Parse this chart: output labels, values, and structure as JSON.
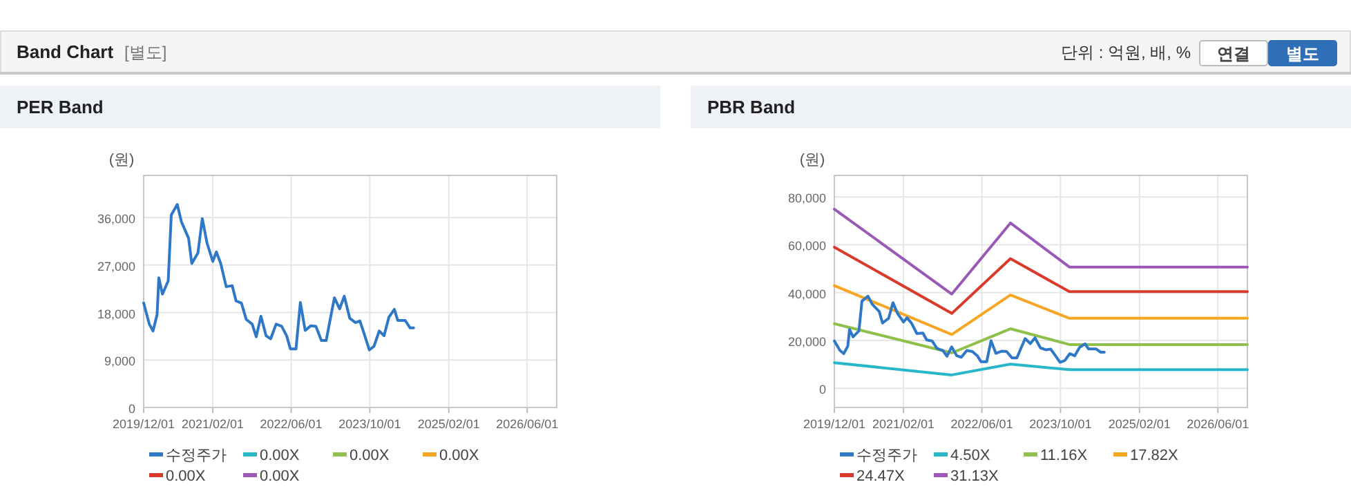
{
  "chart_data": [
    {
      "type": "other",
      "title": "Band Chart",
      "subtitle": "[별도]",
      "annotations": [
        "단위 : 억원, 배, %",
        "연결",
        "별도"
      ]
    },
    {
      "type": "line",
      "title": "PER Band",
      "ylabel": "(원)",
      "grid": true,
      "legend": "bottom",
      "line_style": "solid",
      "marker": "none",
      "xlim": [
        "2019-12-01",
        "2026-12-01"
      ],
      "xticks": [
        {
          "value": "2019-12-01",
          "label": "2019/12/01"
        },
        {
          "value": "2021-02-01",
          "label": "2021/02/01"
        },
        {
          "value": "2022-06-01",
          "label": "2022/06/01"
        },
        {
          "value": "2023-10-01",
          "label": "2023/10/01"
        },
        {
          "value": "2025-02-01",
          "label": "2025/02/01"
        },
        {
          "value": "2026-06-01",
          "label": "2026/06/01"
        }
      ],
      "ylim": [
        0,
        44000
      ],
      "yticks": [
        0,
        {
          "value": 9000,
          "label": "9,000"
        },
        {
          "value": 18000,
          "label": "18,000"
        },
        {
          "value": 27000,
          "label": "27,000"
        },
        {
          "value": 36000,
          "label": "36,000"
        }
      ],
      "series": [
        {
          "name": "수정주가",
          "color": "#2f78c8",
          "x": [
            "2019-12-01",
            "2020-01-05",
            "2020-01-28",
            "2020-02-22",
            "2020-03-04",
            "2020-03-26",
            "2020-05-01",
            "2020-05-20",
            "2020-06-26",
            "2020-07-22",
            "2020-09-04",
            "2020-09-24",
            "2020-11-01",
            "2020-11-28",
            "2020-12-27",
            "2021-02-01",
            "2021-02-23",
            "2021-03-22",
            "2021-04-25",
            "2021-06-01",
            "2021-06-25",
            "2021-07-28",
            "2021-08-27",
            "2021-10-03",
            "2021-10-28",
            "2021-11-26",
            "2021-12-28",
            "2022-01-25",
            "2022-02-28",
            "2022-04-03",
            "2022-05-04",
            "2022-05-27",
            "2022-07-01",
            "2022-07-28",
            "2022-08-27",
            "2022-10-01",
            "2022-11-01",
            "2022-12-05",
            "2023-01-04",
            "2023-01-25",
            "2023-02-24",
            "2023-03-28",
            "2023-04-26",
            "2023-05-30",
            "2023-07-04",
            "2023-08-01",
            "2023-08-31",
            "2023-09-28",
            "2023-10-27",
            "2023-11-28",
            "2023-12-28",
            "2024-01-27",
            "2024-03-01",
            "2024-03-22",
            "2024-05-07",
            "2024-06-06",
            "2024-06-28"
          ],
          "values": [
            19800,
            15800,
            14500,
            17600,
            24600,
            21500,
            24000,
            36500,
            38500,
            35200,
            32100,
            27300,
            29300,
            35800,
            31200,
            27700,
            29500,
            27300,
            22900,
            23100,
            20200,
            19800,
            16700,
            15800,
            13400,
            17300,
            13600,
            13000,
            15800,
            15400,
            13600,
            11100,
            11100,
            19900,
            14600,
            15500,
            15400,
            12700,
            12700,
            16100,
            20800,
            18700,
            21100,
            16900,
            16100,
            16400,
            13600,
            10900,
            11600,
            14500,
            13600,
            17100,
            18600,
            16500,
            16500,
            15100,
            15100
          ]
        },
        {
          "name": "0.00X",
          "color": "#27b7c9"
        },
        {
          "name": "0.00X",
          "color": "#8fc04c"
        },
        {
          "name": "0.00X",
          "color": "#f5a623"
        },
        {
          "name": "0.00X",
          "color": "#d93a2b"
        },
        {
          "name": "0.00X",
          "color": "#9b59b6"
        }
      ]
    },
    {
      "type": "line",
      "title": "PBR Band",
      "ylabel": "(원)",
      "grid": true,
      "legend": "bottom",
      "line_style": "solid",
      "marker": "none",
      "xlim": [
        "2019-12-01",
        "2026-12-01"
      ],
      "xticks": [
        {
          "value": "2019-12-01",
          "label": "2019/12/01"
        },
        {
          "value": "2021-02-01",
          "label": "2021/02/01"
        },
        {
          "value": "2022-06-01",
          "label": "2022/06/01"
        },
        {
          "value": "2023-10-01",
          "label": "2023/10/01"
        },
        {
          "value": "2025-02-01",
          "label": "2025/02/01"
        },
        {
          "value": "2026-06-01",
          "label": "2026/06/01"
        }
      ],
      "ylim": [
        -8000,
        89000
      ],
      "yticks": [
        0,
        {
          "value": 20000,
          "label": "20,000"
        },
        {
          "value": 40000,
          "label": "40,000"
        },
        {
          "value": 60000,
          "label": "60,000"
        },
        {
          "value": 80000,
          "label": "80,000"
        }
      ],
      "series": [
        {
          "name": "수정주가",
          "color": "#2f78c8",
          "x": [
            "2019-12-01",
            "2020-01-05",
            "2020-01-28",
            "2020-02-22",
            "2020-03-04",
            "2020-03-26",
            "2020-05-01",
            "2020-05-20",
            "2020-06-26",
            "2020-07-22",
            "2020-09-04",
            "2020-09-24",
            "2020-11-01",
            "2020-11-28",
            "2020-12-27",
            "2021-02-01",
            "2021-02-23",
            "2021-03-22",
            "2021-04-25",
            "2021-06-01",
            "2021-06-25",
            "2021-07-28",
            "2021-08-27",
            "2021-10-03",
            "2021-10-28",
            "2021-11-26",
            "2021-12-28",
            "2022-01-25",
            "2022-02-28",
            "2022-04-03",
            "2022-05-04",
            "2022-05-27",
            "2022-07-01",
            "2022-07-28",
            "2022-08-27",
            "2022-10-01",
            "2022-11-01",
            "2022-12-05",
            "2023-01-04",
            "2023-01-25",
            "2023-02-24",
            "2023-03-28",
            "2023-04-26",
            "2023-05-30",
            "2023-07-04",
            "2023-08-01",
            "2023-08-31",
            "2023-09-28",
            "2023-10-27",
            "2023-11-28",
            "2023-12-28",
            "2024-01-27",
            "2024-03-01",
            "2024-03-22",
            "2024-05-07",
            "2024-06-06",
            "2024-06-28"
          ],
          "values": [
            19800,
            15800,
            14500,
            17600,
            24600,
            21500,
            24000,
            36500,
            38500,
            35200,
            32100,
            27300,
            29300,
            35800,
            31200,
            27700,
            29500,
            27300,
            22900,
            23100,
            20200,
            19800,
            16700,
            15800,
            13400,
            17300,
            13600,
            13000,
            15800,
            15400,
            13600,
            11100,
            11100,
            19900,
            14600,
            15500,
            15400,
            12700,
            12700,
            16100,
            20800,
            18700,
            21100,
            16900,
            16100,
            16400,
            13600,
            10900,
            11600,
            14500,
            13600,
            17100,
            18600,
            16500,
            16500,
            15100,
            15100
          ]
        },
        {
          "name": "4.50X",
          "color": "#27b7c9",
          "x": [
            "2019-12-01",
            "2021-11-27",
            "2022-11-25",
            "2023-11-25",
            "2026-12-01"
          ],
          "values": [
            10700,
            5600,
            10100,
            7800,
            7800
          ]
        },
        {
          "name": "11.16X",
          "color": "#8fc04c",
          "x": [
            "2019-12-01",
            "2021-11-27",
            "2022-11-25",
            "2023-11-25",
            "2026-12-01"
          ],
          "values": [
            27000,
            14800,
            24900,
            18300,
            18300
          ]
        },
        {
          "name": "17.82X",
          "color": "#f5a623",
          "x": [
            "2019-12-01",
            "2021-11-27",
            "2022-11-25",
            "2023-11-25",
            "2026-12-01"
          ],
          "values": [
            42900,
            22500,
            39000,
            29300,
            29300
          ]
        },
        {
          "name": "24.47X",
          "color": "#d93a2b",
          "x": [
            "2019-12-01",
            "2021-11-27",
            "2022-11-25",
            "2023-11-25",
            "2026-12-01"
          ],
          "values": [
            59000,
            31300,
            54200,
            40400,
            40400
          ]
        },
        {
          "name": "31.13X",
          "color": "#9b59b6",
          "x": [
            "2019-12-01",
            "2021-11-27",
            "2022-11-25",
            "2023-11-25",
            "2026-12-01"
          ],
          "values": [
            74900,
            39400,
            69100,
            50700,
            50700
          ]
        }
      ]
    }
  ]
}
